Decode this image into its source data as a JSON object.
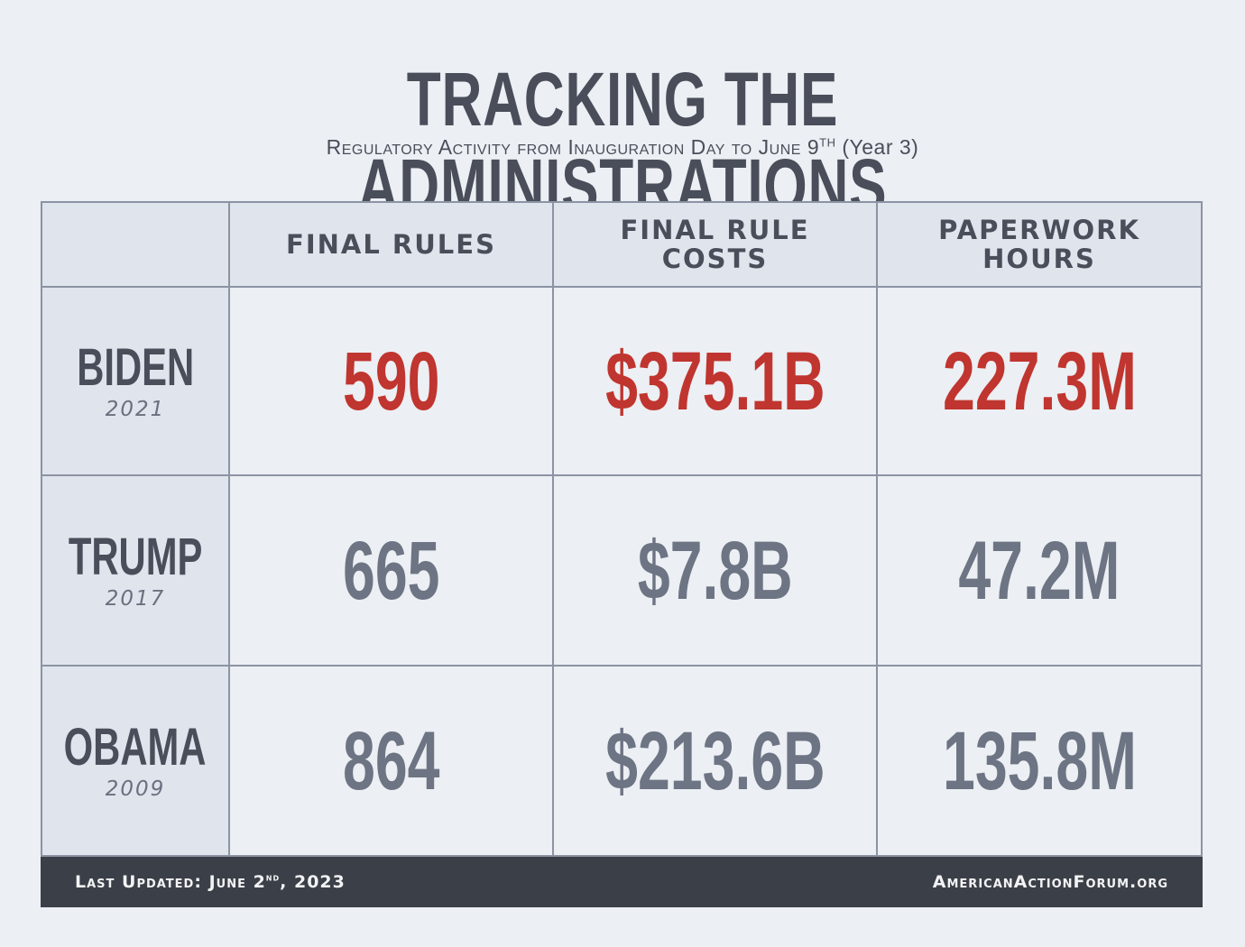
{
  "title": "TRACKING THE ADMINISTRATIONS",
  "subtitle": {
    "text": "Regulatory Activity from Inauguration Day to June 9",
    "sup": "TH",
    "suffix": "(Year 3)"
  },
  "columns": [
    "FINAL RULES",
    "FINAL RULE COSTS",
    "PAPERWORK HOURS"
  ],
  "header_lines": [
    [
      "FINAL RULES"
    ],
    [
      "FINAL RULE",
      "COSTS"
    ],
    [
      "PAPERWORK",
      "HOURS"
    ]
  ],
  "rows": [
    {
      "name": "BIDEN",
      "year": "2021",
      "values": [
        "590",
        "$375.1B",
        "227.3M"
      ],
      "highlight": true
    },
    {
      "name": "TRUMP",
      "year": "2017",
      "values": [
        "665",
        "$7.8B",
        "47.2M"
      ],
      "highlight": false
    },
    {
      "name": "OBAMA",
      "year": "2009",
      "values": [
        "864",
        "$213.6B",
        "135.8M"
      ],
      "highlight": false
    }
  ],
  "footer": {
    "updated_prefix": "Last Updated: June 2",
    "updated_sup": "nd",
    "updated_suffix": ", 2023",
    "site": "AmericanActionForum.org"
  },
  "colors": {
    "highlight": "#c0352f",
    "value": "#6d7483",
    "text": "#4a4e5a",
    "footer_bg": "#3b3f47"
  }
}
